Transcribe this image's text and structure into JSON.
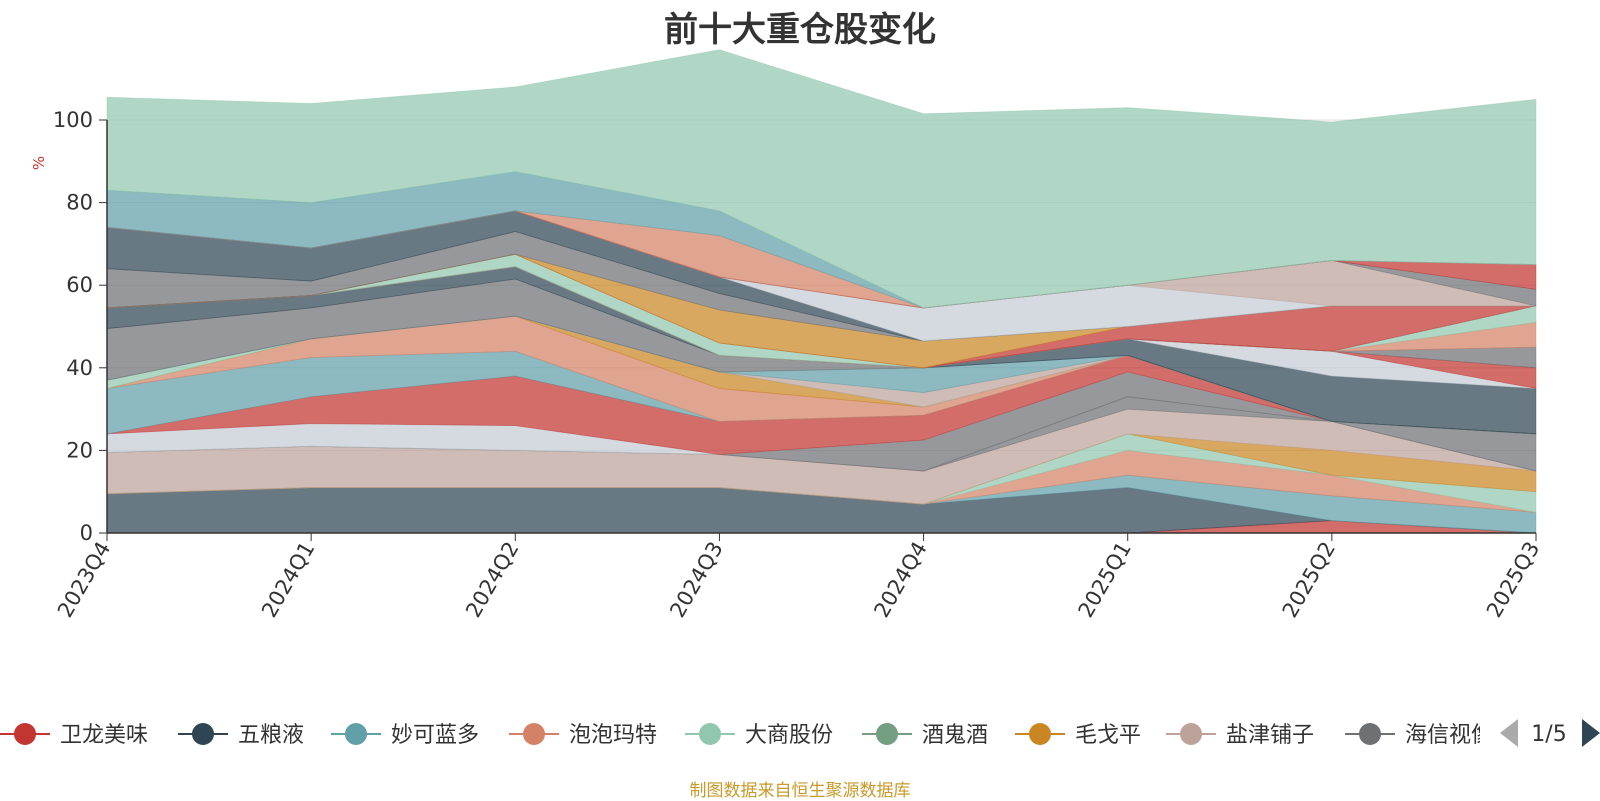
{
  "title": "前十大重仓股变化",
  "source_note": "制图数据来自恒生聚源数据库",
  "chart_data": {
    "type": "area",
    "stacked": true,
    "ylabel": "%",
    "ylim": [
      0,
      100
    ],
    "yticks": [
      0,
      20,
      40,
      60,
      80,
      100
    ],
    "grid": true,
    "categories": [
      "2023Q4",
      "2024Q1",
      "2024Q2",
      "2024Q3",
      "2024Q4",
      "2025Q1",
      "2025Q2",
      "2025Q3"
    ],
    "layers": [
      {
        "color": "#c23531",
        "values": [
          0,
          0,
          0,
          0,
          0,
          0,
          3,
          0
        ]
      },
      {
        "color": "#2f4554",
        "values": [
          9.5,
          11,
          11,
          11,
          7,
          11,
          0,
          0
        ]
      },
      {
        "color": "#61a0a8",
        "values": [
          0,
          0,
          0,
          0,
          0,
          3,
          6,
          5
        ]
      },
      {
        "color": "#d48265",
        "values": [
          0,
          0,
          0,
          0,
          0,
          6,
          5,
          0
        ]
      },
      {
        "color": "#91c7ae",
        "values": [
          0,
          0,
          0,
          0,
          0,
          4,
          0,
          5
        ]
      },
      {
        "color": "#749f83",
        "values": [
          0,
          0,
          0,
          0,
          0,
          0,
          0,
          0
        ]
      },
      {
        "color": "#ca8622",
        "values": [
          0,
          0,
          0,
          0,
          0,
          0,
          6,
          5
        ]
      },
      {
        "color": "#bda29a",
        "values": [
          10,
          10,
          9,
          8,
          8,
          6,
          7,
          0
        ]
      },
      {
        "color": "#6e7074",
        "values": [
          0,
          0,
          0,
          0,
          0,
          3,
          0,
          0
        ]
      },
      {
        "color": "#546570",
        "values": [
          0,
          0,
          0,
          0,
          0,
          0,
          0,
          0
        ]
      },
      {
        "color": "#6e7074",
        "values": [
          0,
          0,
          0,
          0,
          7.5,
          6,
          0,
          9
        ]
      },
      {
        "color": "#c4ccd3",
        "values": [
          4.5,
          5.5,
          6,
          0,
          0,
          0,
          0,
          0
        ]
      },
      {
        "color": "#c23531",
        "values": [
          0,
          6.5,
          12,
          8,
          6,
          4,
          0,
          0
        ]
      },
      {
        "color": "#61a0a8",
        "values": [
          11,
          9.5,
          6,
          0,
          0,
          0,
          0,
          0
        ]
      },
      {
        "color": "#d48265",
        "values": [
          0,
          4.5,
          8.5,
          8,
          2,
          0,
          0,
          0
        ]
      },
      {
        "color": "#ca8622",
        "values": [
          0,
          0,
          0,
          4,
          0,
          0,
          0,
          0
        ]
      },
      {
        "color": "#91c7ae",
        "values": [
          2,
          0,
          0,
          0,
          0,
          0,
          0,
          0
        ]
      },
      {
        "color": "#bda29a",
        "values": [
          0,
          0,
          0,
          0,
          3.5,
          0,
          0,
          0
        ]
      },
      {
        "color": "#61a0a8",
        "values": [
          0,
          0,
          0,
          0,
          6,
          0,
          0,
          0
        ]
      },
      {
        "color": "#6e7074",
        "values": [
          12.5,
          7.5,
          9,
          4,
          0,
          0,
          0,
          0
        ]
      },
      {
        "color": "#2f4554",
        "values": [
          5,
          3,
          3,
          0,
          0,
          4,
          11,
          11
        ]
      },
      {
        "color": "#546570",
        "values": [
          0,
          0,
          0,
          0,
          0,
          0,
          0,
          0
        ]
      },
      {
        "color": "#c4ccd3",
        "values": [
          0,
          0,
          0,
          0,
          0,
          0,
          6,
          0
        ]
      },
      {
        "color": "#c23531",
        "values": [
          0,
          0,
          0,
          0,
          0,
          0,
          0,
          5
        ]
      },
      {
        "color": "#6e7074",
        "values": [
          0,
          0,
          0,
          0,
          0,
          0,
          0,
          5
        ]
      },
      {
        "color": "#d48265",
        "values": [
          0,
          0,
          0,
          0,
          0,
          0,
          0,
          6
        ]
      },
      {
        "color": "#91c7ae",
        "values": [
          0,
          0,
          3,
          3,
          0,
          0,
          0,
          4
        ]
      },
      {
        "color": "#c23531",
        "values": [
          0,
          0,
          0,
          0,
          0,
          3,
          11,
          0
        ]
      },
      {
        "color": "#ca8622",
        "values": [
          0,
          0,
          0,
          8,
          6.5,
          0,
          0,
          0
        ]
      },
      {
        "color": "#91c7ae",
        "values": [
          0,
          0,
          0,
          0,
          0,
          0,
          0,
          0
        ]
      },
      {
        "color": "#6e7074",
        "values": [
          9.5,
          3.5,
          5.5,
          4,
          0,
          0,
          0,
          0
        ]
      },
      {
        "color": "#2f4554",
        "values": [
          10,
          8,
          5,
          4,
          0,
          0,
          0,
          0
        ]
      },
      {
        "color": "#c4ccd3",
        "values": [
          0,
          0,
          0,
          0,
          8,
          10,
          0,
          0
        ]
      },
      {
        "color": "#bda29a",
        "values": [
          0,
          0,
          0,
          0,
          0,
          0,
          11,
          0
        ]
      },
      {
        "color": "#6e7074",
        "values": [
          0,
          0,
          0,
          0,
          0,
          0,
          0,
          4
        ]
      },
      {
        "color": "#c23531",
        "values": [
          0,
          0,
          0,
          0,
          0,
          0,
          0,
          6
        ]
      },
      {
        "color": "#d48265",
        "values": [
          0,
          0,
          0,
          10,
          0,
          0,
          0,
          0
        ]
      },
      {
        "color": "#61a0a8",
        "values": [
          9,
          11,
          9.5,
          6,
          0,
          0,
          0,
          0
        ]
      },
      {
        "color": "#91c7ae",
        "values": [
          22.5,
          24,
          20.5,
          39,
          47,
          43,
          33.5,
          40
        ]
      }
    ]
  },
  "legend": {
    "items": [
      {
        "label": "卫龙美味",
        "color": "#c23531"
      },
      {
        "label": "五粮液",
        "color": "#2f4554"
      },
      {
        "label": "妙可蓝多",
        "color": "#61a0a8"
      },
      {
        "label": "泡泡玛特",
        "color": "#d48265"
      },
      {
        "label": "大商股份",
        "color": "#91c7ae"
      },
      {
        "label": "酒鬼酒",
        "color": "#749f83"
      },
      {
        "label": "毛戈平",
        "color": "#ca8622"
      },
      {
        "label": "盐津铺子",
        "color": "#bda29a"
      },
      {
        "label": "海信视像",
        "color": "#6e7074"
      }
    ],
    "page": "1/5"
  }
}
